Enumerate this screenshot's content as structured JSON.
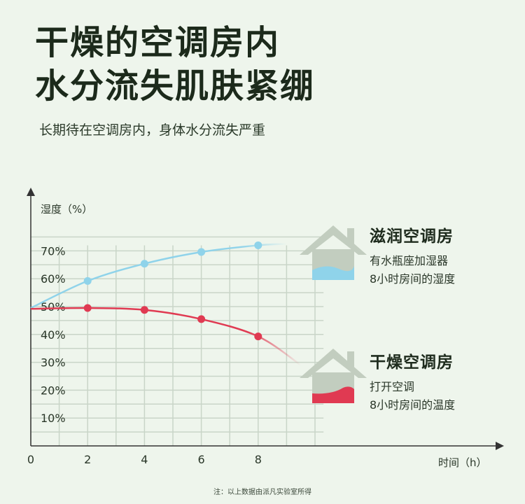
{
  "title_lines": [
    "干燥的空调房内",
    "水分流失肌肤紧绷"
  ],
  "subtitle": "长期待在空调房内，身体水分流失严重",
  "footnote": "注：以上数据由派凡实验室所得",
  "legend": [
    {
      "title": "滋润空调房",
      "lines": [
        "有水瓶座加湿器",
        "8小时房间的湿度"
      ],
      "color": "#8fd3ea",
      "icon": "house-icon"
    },
    {
      "title": "干燥空调房",
      "lines": [
        "打开空调",
        "8小时房间的温度"
      ],
      "color": "#e03a52",
      "icon": "house-icon"
    }
  ],
  "colors": {
    "grid": "#c9d5c8",
    "axis": "#333333",
    "background": "#eef5ec",
    "house": "#c2cdbf"
  },
  "chart_data": {
    "type": "line",
    "xlabel": "时间（h）",
    "ylabel": "湿度（%）",
    "x_ticks": [
      "0",
      "2",
      "4",
      "6",
      "8"
    ],
    "y_ticks": [
      "10%",
      "20%",
      "30%",
      "40%",
      "50%",
      "60%",
      "70%"
    ],
    "xlim": [
      0,
      10
    ],
    "ylim": [
      0,
      80
    ],
    "grid": true,
    "series": [
      {
        "name": "滋润空调房",
        "color": "#8fd3ea",
        "curve_x": [
          0,
          2,
          4,
          6,
          8,
          9
        ],
        "curve_y": [
          49.5,
          59.2,
          65.4,
          69.6,
          72,
          72.5
        ],
        "marker_x": [
          2,
          4,
          6,
          8
        ],
        "marker_y": [
          59.2,
          65.4,
          69.6,
          72
        ]
      },
      {
        "name": "干燥空调房",
        "color": "#e03a52",
        "curve_x": [
          0,
          2,
          4,
          6,
          8,
          9.5
        ],
        "curve_y": [
          49.2,
          49.5,
          48.8,
          45.5,
          39.3,
          29
        ],
        "marker_x": [
          2,
          4,
          6,
          8
        ],
        "marker_y": [
          49.5,
          48.8,
          45.5,
          39.3
        ]
      }
    ]
  }
}
